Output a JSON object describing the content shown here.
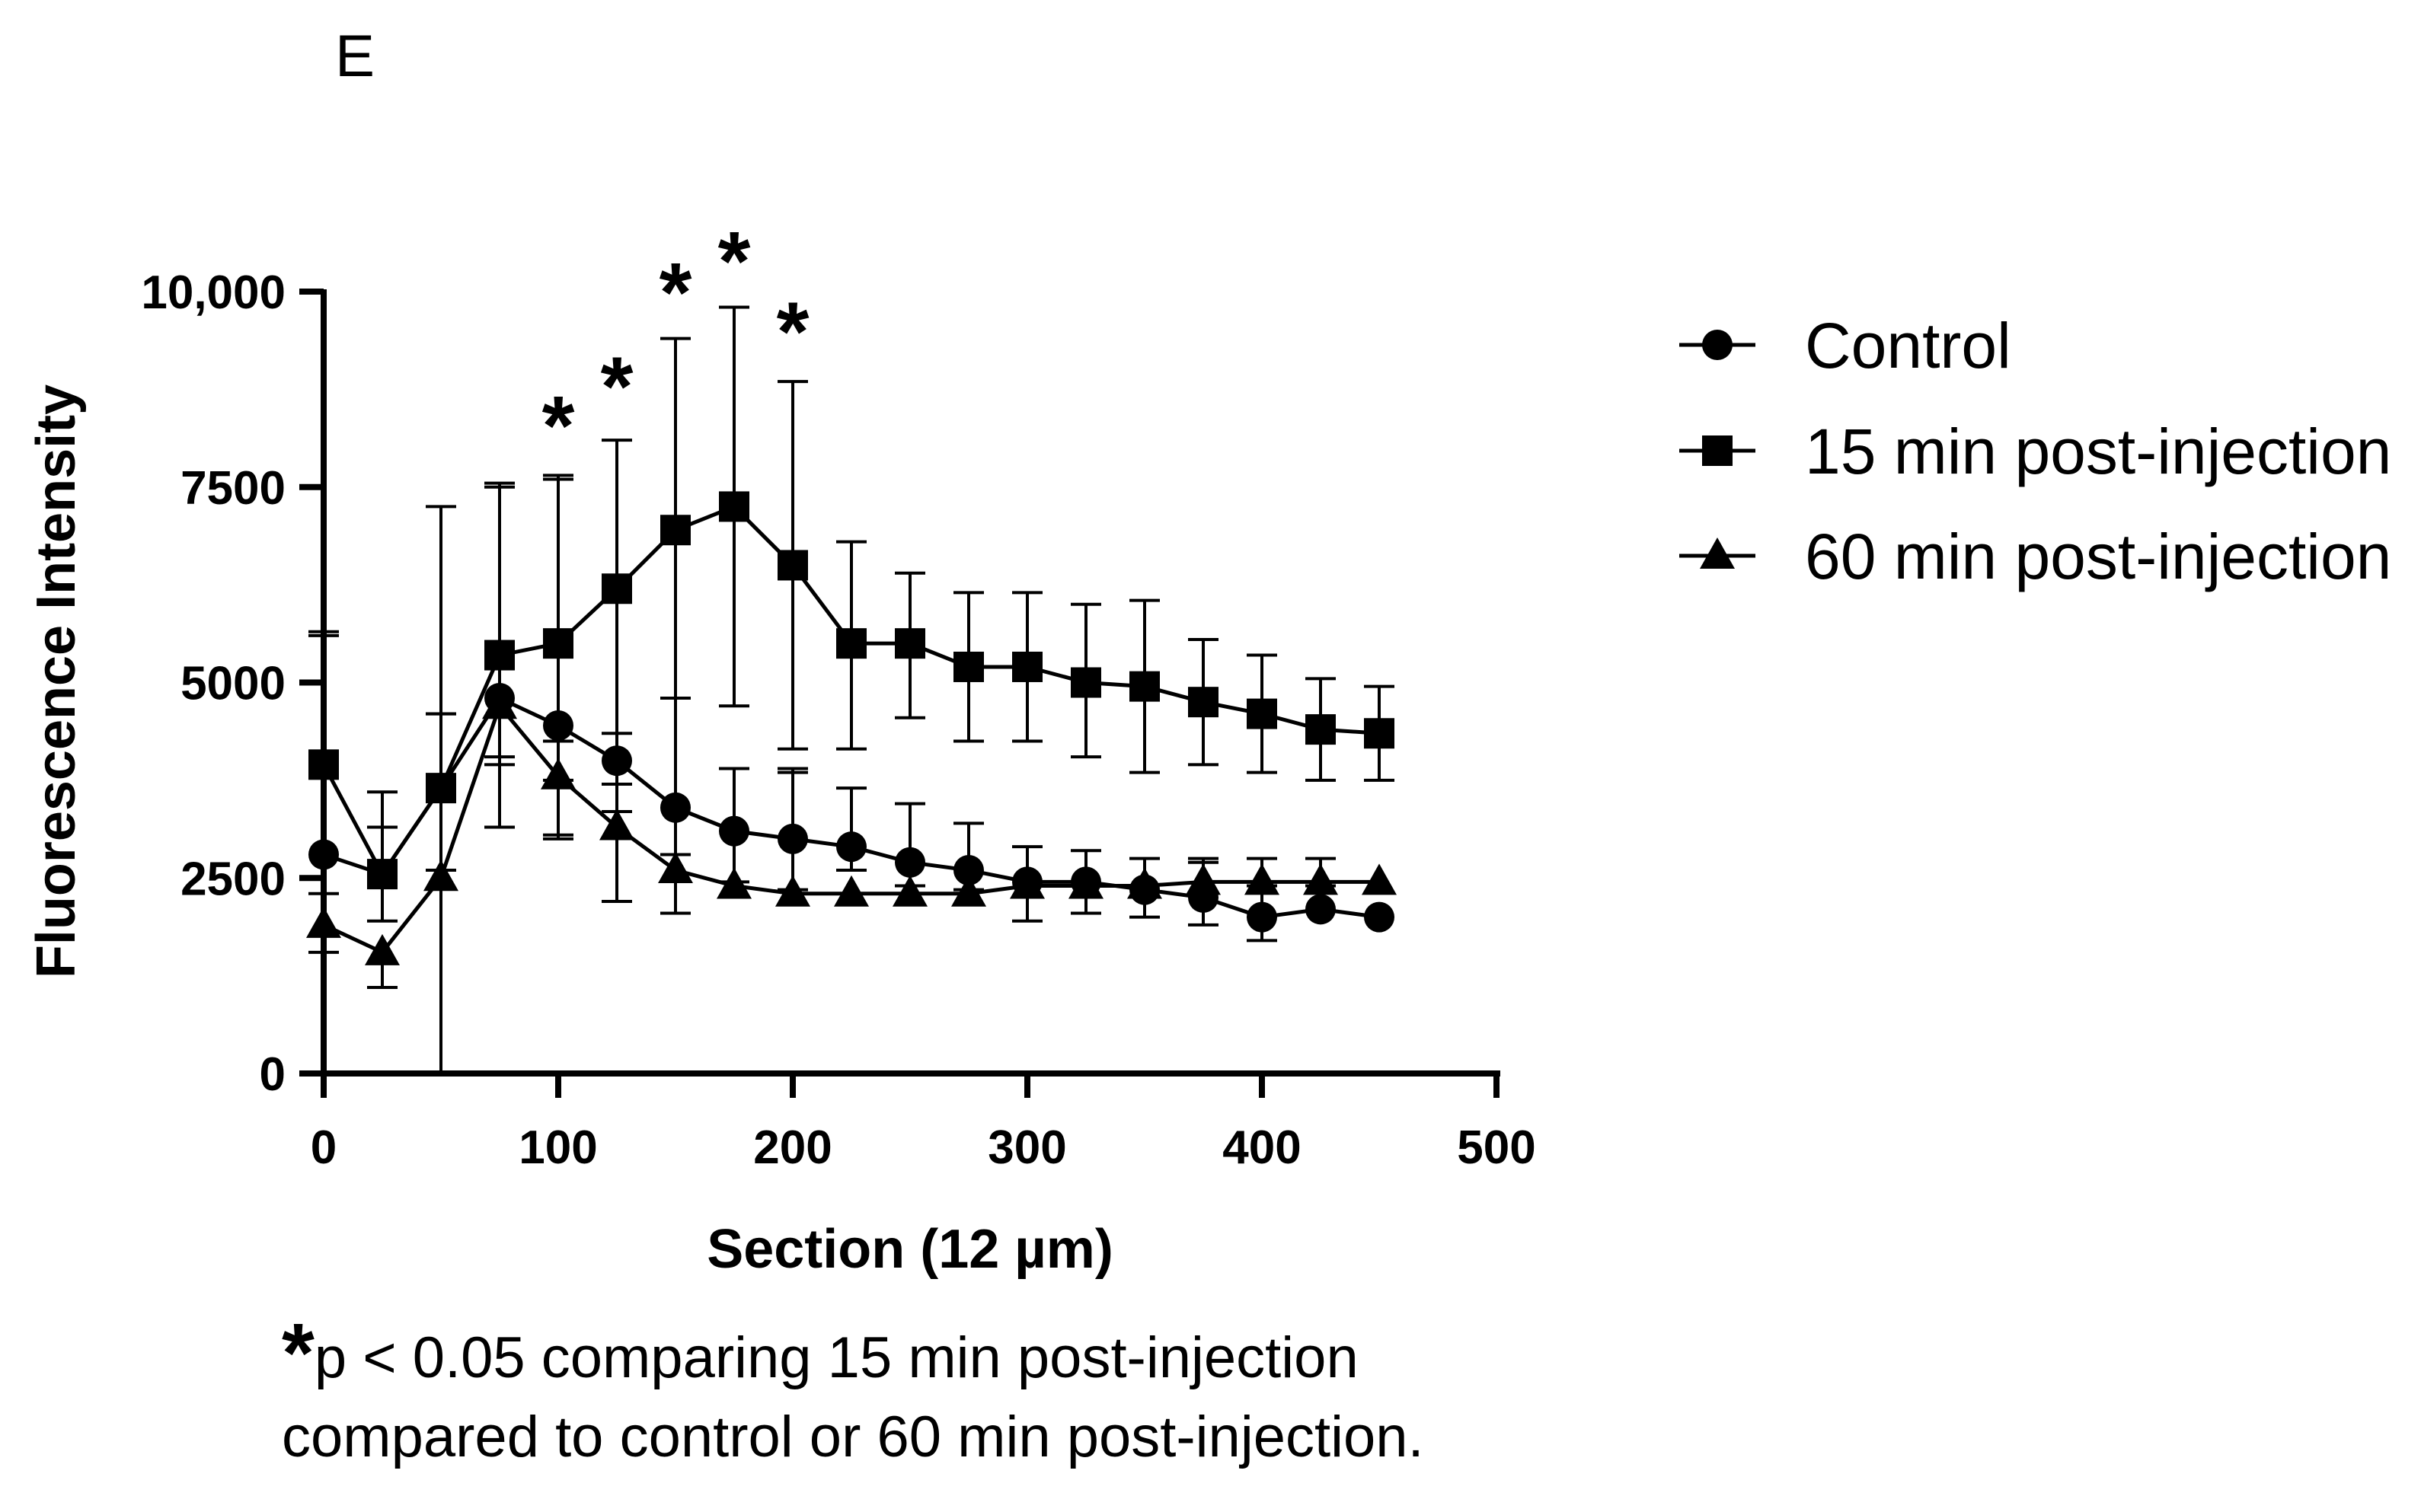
{
  "panel_label": "E",
  "footnote": {
    "star": "*",
    "line1": "p < 0.05 comparing 15 min post-injection",
    "line2": "compared to control or 60 min post-injection."
  },
  "chart_data": {
    "type": "line",
    "title": "",
    "xlabel": "Section (12 µm)",
    "ylabel": "Fluorescence Intensity",
    "xlim": [
      0,
      500
    ],
    "ylim": [
      0,
      10000
    ],
    "xticks": [
      0,
      100,
      200,
      300,
      400,
      500
    ],
    "xtick_labels": [
      "0",
      "100",
      "200",
      "300",
      "400",
      "500"
    ],
    "yticks": [
      0,
      2500,
      5000,
      7500,
      10000
    ],
    "ytick_labels": [
      "0",
      "2500",
      "5000",
      "7500",
      "10,000"
    ],
    "grid": false,
    "legend_position": "right",
    "x": [
      0,
      25,
      50,
      75,
      100,
      125,
      150,
      175,
      200,
      225,
      250,
      275,
      300,
      325,
      350,
      375,
      400,
      425,
      450
    ],
    "series": [
      {
        "name": "Control",
        "marker": "circle",
        "color": "#000000",
        "values": [
          2800,
          2550,
          3650,
          4800,
          4450,
          4000,
          3400,
          3100,
          3000,
          2900,
          2700,
          2600,
          2450,
          2450,
          2350,
          2250,
          2000,
          2100,
          2000
        ],
        "err_up": [
          2850,
          600,
          950,
          2750,
          3150,
          2100,
          1400,
          800,
          850,
          750,
          750,
          600,
          450,
          400,
          400,
          450,
          400,
          300,
          0
        ],
        "err_down": [
          500,
          600,
          1050,
          750,
          700,
          650,
          600,
          650,
          650,
          300,
          300,
          250,
          500,
          400,
          350,
          350,
          300,
          0,
          0
        ]
      },
      {
        "name": "15 min post-injection",
        "marker": "square",
        "color": "#000000",
        "values": [
          3950,
          2550,
          3650,
          5350,
          5500,
          6200,
          6950,
          7250,
          6500,
          5500,
          5500,
          5200,
          5200,
          5000,
          4950,
          4750,
          4600,
          4400,
          4350
        ],
        "err_up": [
          1650,
          1050,
          3600,
          2150,
          2150,
          1900,
          2450,
          2550,
          2350,
          1300,
          900,
          950,
          950,
          1000,
          1100,
          800,
          750,
          650,
          600
        ],
        "err_down": [
          0,
          0,
          0,
          2200,
          2450,
          2500,
          2150,
          2550,
          2350,
          1350,
          950,
          950,
          950,
          950,
          1100,
          800,
          750,
          650,
          600
        ]
      },
      {
        "name": "60 min post-injection",
        "marker": "triangle",
        "color": "#000000",
        "values": [
          1900,
          1550,
          2500,
          4700,
          3800,
          3150,
          2600,
          2400,
          2300,
          2300,
          2300,
          2300,
          2400,
          2400,
          2400,
          2450,
          2450,
          2450,
          2450
        ],
        "err_up": [
          0,
          0,
          2100,
          0,
          450,
          1200,
          2200,
          1500,
          1600,
          0,
          0,
          0,
          0,
          0,
          0,
          300,
          300,
          300,
          0
        ],
        "err_down": [
          350,
          450,
          2500,
          750,
          800,
          950,
          550,
          0,
          0,
          0,
          0,
          0,
          0,
          0,
          0,
          0,
          0,
          0,
          0
        ]
      }
    ],
    "annotations": [
      {
        "text": "*",
        "x": 100,
        "y": 8600
      },
      {
        "text": "*",
        "x": 125,
        "y": 9100
      },
      {
        "text": "*",
        "x": 150,
        "y": 10300
      },
      {
        "text": "*",
        "x": 175,
        "y": 10700
      },
      {
        "text": "*",
        "x": 200,
        "y": 9800
      }
    ]
  }
}
